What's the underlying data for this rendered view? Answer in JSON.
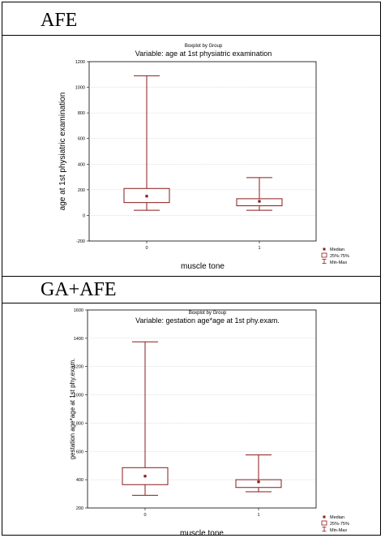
{
  "sections": [
    {
      "title": "AFE"
    },
    {
      "title": "GA+AFE"
    }
  ],
  "legend": {
    "median": "Median",
    "iqr": "25%-75%",
    "range": "Min-Max"
  },
  "colors": {
    "box": "#8b1a1a",
    "frame": "#000000"
  },
  "chart_data": [
    {
      "type": "boxplot",
      "suptitle": "Boxplot by Group",
      "title": "Variable: age at 1st physiatric examination",
      "xlabel": "muscle tone",
      "ylabel": "age at 1st physiatric examination",
      "ylim": [
        -200,
        1200
      ],
      "yticks": [
        "-200",
        "0",
        "200",
        "400",
        "600",
        "800",
        "1000",
        "1200"
      ],
      "categories": [
        "0",
        "1"
      ],
      "groups": [
        {
          "category": "0",
          "median": 150,
          "q1": 100,
          "q3": 210,
          "min": 40,
          "max": 1090
        },
        {
          "category": "1",
          "median": 110,
          "q1": 75,
          "q3": 130,
          "min": 40,
          "max": 295
        }
      ]
    },
    {
      "type": "boxplot",
      "suptitle": "Boxplot by Group",
      "title": "Variable: gestation age*age at 1st phy.exam.",
      "xlabel": "muscle tone",
      "ylabel": "gestation age*age at 1st phy.exam.",
      "ylim": [
        200,
        1600
      ],
      "yticks": [
        "200",
        "400",
        "600",
        "800",
        "1000",
        "1200",
        "1400",
        "1600"
      ],
      "categories": [
        "0",
        "1"
      ],
      "groups": [
        {
          "category": "0",
          "median": 425,
          "q1": 365,
          "q3": 485,
          "min": 290,
          "max": 1375
        },
        {
          "category": "1",
          "median": 385,
          "q1": 345,
          "q3": 400,
          "min": 315,
          "max": 575
        }
      ]
    }
  ]
}
